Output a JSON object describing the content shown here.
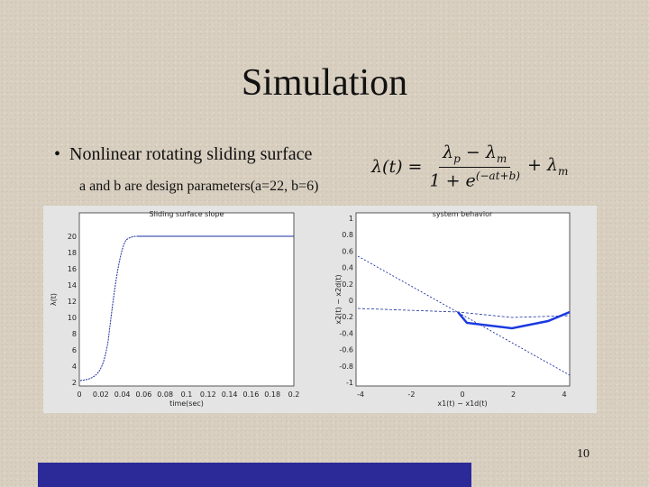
{
  "slide": {
    "title": "Simulation",
    "bullet": "Nonlinear rotating sliding surface",
    "subtext": "a and b are design parameters(a=22, b=6)",
    "formula": {
      "lhs": "λ(t) =",
      "numerator": [
        "λ",
        "p",
        " − λ",
        "m"
      ],
      "denominator": [
        "1 + e",
        "(−at+b)"
      ],
      "tail": [
        "+ λ",
        "m"
      ]
    },
    "page_number": "10",
    "figures": [
      {
        "title": "Sliding surface slope",
        "xlabel": "time(sec)",
        "ylabel": "λ(t)",
        "xticks": [
          "0",
          "0.02",
          "0.04",
          "0.06",
          "0.08",
          "0.1",
          "0.12",
          "0.14",
          "0.16",
          "0.18",
          "0.2"
        ],
        "yticks": [
          "2",
          "4",
          "6",
          "8",
          "10",
          "12",
          "14",
          "16",
          "18",
          "20"
        ]
      },
      {
        "title": "system behavior",
        "xlabel": "x1(t) − x1d(t)",
        "ylabel": "x2(t) − x2d(t)",
        "xticks": [
          "-4",
          "-2",
          "0",
          "2",
          "4"
        ],
        "yticks": [
          "-1",
          "-0.8",
          "-0.6",
          "-0.4",
          "-0.2",
          "0",
          "0.2",
          "0.4",
          "0.6",
          "0.8",
          "1"
        ]
      }
    ]
  }
}
